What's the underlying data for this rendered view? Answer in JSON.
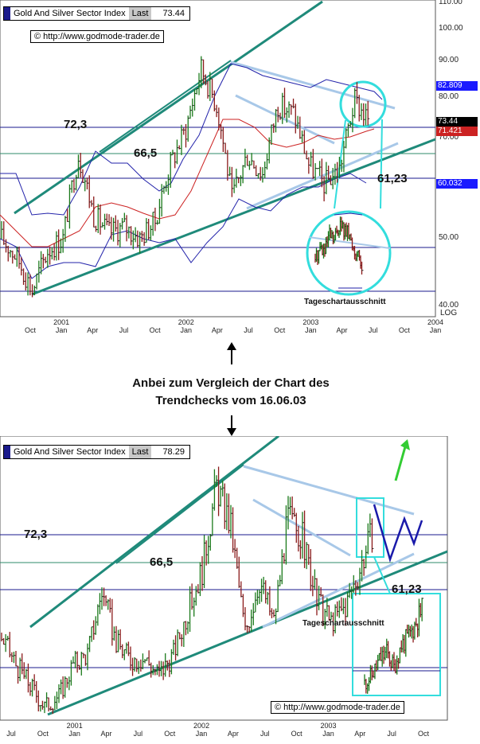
{
  "top_chart": {
    "header": {
      "name": "Gold And Silver Sector Index",
      "last_label": "Last",
      "last_value": "73.44"
    },
    "copyright": "© http://www.godmode-trader.de",
    "y_ticks": [
      "110.00",
      "100.00",
      "90.00",
      "80.00",
      "70.00",
      "50.00",
      "40.00"
    ],
    "log_label": "LOG",
    "price_tags": {
      "upper_band": "82.809",
      "last": "73.44",
      "ma": "71.421",
      "lower_band": "60.032"
    },
    "annotations": {
      "level_1": "72,3",
      "level_2": "66,5",
      "level_3": "61,23",
      "inset_label": "Tageschartausschnitt"
    },
    "x_labels": [
      {
        "top": "",
        "bottom": "Oct"
      },
      {
        "top": "2001",
        "bottom": "Jan"
      },
      {
        "top": "",
        "bottom": "Apr"
      },
      {
        "top": "",
        "bottom": "Jul"
      },
      {
        "top": "",
        "bottom": "Oct"
      },
      {
        "top": "2002",
        "bottom": "Jan"
      },
      {
        "top": "",
        "bottom": "Apr"
      },
      {
        "top": "",
        "bottom": "Jul"
      },
      {
        "top": "",
        "bottom": "Oct"
      },
      {
        "top": "2003",
        "bottom": "Jan"
      },
      {
        "top": "",
        "bottom": "Apr"
      },
      {
        "top": "",
        "bottom": "Jul"
      },
      {
        "top": "",
        "bottom": "Oct"
      },
      {
        "top": "2004",
        "bottom": "Jan"
      }
    ]
  },
  "middle_text": {
    "line1": "Anbei zum Vergleich der Chart des",
    "line2": "Trendchecks vom 16.06.03"
  },
  "bottom_chart": {
    "header": {
      "name": "Gold And Silver Sector Index",
      "last_label": "Last",
      "last_value": "78.29"
    },
    "copyright": "© http://www.godmode-trader.de",
    "annotations": {
      "level_1": "72,3",
      "level_2": "66,5",
      "level_3": "61,23",
      "inset_label": "Tageschartausschnitt"
    },
    "x_labels": [
      {
        "top": "",
        "bottom": "Jul"
      },
      {
        "top": "",
        "bottom": "Oct"
      },
      {
        "top": "2001",
        "bottom": "Jan"
      },
      {
        "top": "",
        "bottom": "Apr"
      },
      {
        "top": "",
        "bottom": "Jul"
      },
      {
        "top": "",
        "bottom": "Oct"
      },
      {
        "top": "2002",
        "bottom": "Jan"
      },
      {
        "top": "",
        "bottom": "Apr"
      },
      {
        "top": "",
        "bottom": "Jul"
      },
      {
        "top": "",
        "bottom": "Oct"
      },
      {
        "top": "2003",
        "bottom": "Jan"
      },
      {
        "top": "",
        "bottom": "Apr"
      },
      {
        "top": "",
        "bottom": "Jul"
      },
      {
        "top": "",
        "bottom": "Oct"
      }
    ]
  },
  "chart_data": [
    {
      "type": "line",
      "title": "Gold And Silver Sector Index",
      "scale": "log",
      "ylim": [
        40,
        110
      ],
      "last": 73.44,
      "upper_band": 82.809,
      "moving_average": 71.421,
      "lower_band": 60.032,
      "levels": [
        72.3,
        66.5,
        61.23
      ],
      "x": [
        "Sep 2000",
        "Oct 2000",
        "Nov 2000",
        "Jan 2001",
        "Feb 2001",
        "Apr 2001",
        "May 2001",
        "Jul 2001",
        "Sep 2001",
        "Oct 2001",
        "Nov 2001",
        "Jan 2002",
        "Feb 2002",
        "Apr 2002",
        "May 2002",
        "Jul 2002",
        "Sep 2002",
        "Oct 2002",
        "Dec 2002",
        "Jan 2003",
        "Feb 2003",
        "Mar 2003",
        "Apr 2003",
        "May 2003",
        "Jun 2003"
      ],
      "series": [
        {
          "values": [
            50,
            47,
            42,
            48,
            50,
            66,
            54,
            51,
            52,
            50,
            53,
            64,
            72,
            88,
            78,
            57,
            66,
            62,
            78,
            76,
            64,
            60,
            63,
            79,
            73.44
          ]
        }
      ]
    },
    {
      "type": "line",
      "title": "Gold And Silver Sector Index",
      "last": 78.29,
      "levels": [
        72.3,
        66.5,
        61.23
      ],
      "x": [
        "Jul 2000",
        "Aug 2000",
        "Sep 2000",
        "Oct 2000",
        "Nov 2000",
        "Jan 2001",
        "Feb 2001",
        "Apr 2001",
        "May 2001",
        "Jul 2001",
        "Sep 2001",
        "Oct 2001",
        "Nov 2001",
        "Jan 2002",
        "Feb 2002",
        "Apr 2002",
        "May 2002",
        "Jul 2002",
        "Sep 2002",
        "Oct 2002",
        "Dec 2002",
        "Jan 2003",
        "Feb 2003",
        "Mar 2003",
        "Apr 2003",
        "May 2003",
        "Jun 2003"
      ],
      "series": [
        {
          "values": [
            57,
            52,
            48,
            44,
            46,
            52,
            54,
            66,
            56,
            53,
            53,
            50,
            54,
            62,
            70,
            86,
            78,
            58,
            68,
            60,
            80,
            76,
            64,
            60,
            63,
            70,
            78.29
          ]
        }
      ]
    }
  ]
}
